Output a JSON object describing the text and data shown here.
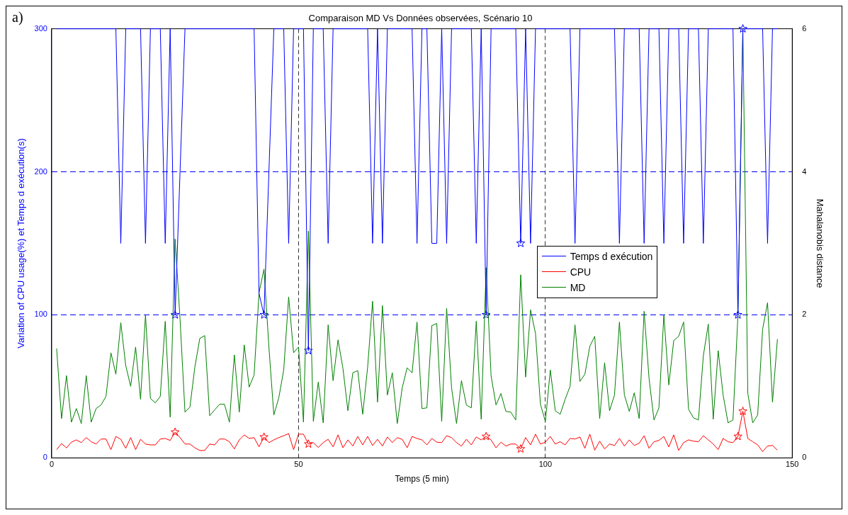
{
  "chart_data": {
    "type": "line",
    "title": "Comparaison MD Vs Données observées, Scénario 10",
    "xlabel": "Temps (5 min)",
    "ylabel": "Variation of CPU usage(%) et Temps d exécution(s)",
    "y2label": "Mahalanobis distance",
    "annotations": [
      "a)"
    ],
    "xlim": [
      0,
      150
    ],
    "xticks": [
      0,
      50,
      100,
      150
    ],
    "ylim": [
      0,
      300
    ],
    "yticks": [
      0,
      100,
      200,
      300
    ],
    "y2lim": [
      0,
      6
    ],
    "y2ticks": [
      0,
      2,
      4,
      6
    ],
    "grid": true,
    "legend": "right",
    "line_style": "solid",
    "x": [
      1,
      2,
      3,
      4,
      5,
      6,
      7,
      8,
      9,
      10,
      11,
      12,
      13,
      14,
      15,
      16,
      17,
      18,
      19,
      20,
      21,
      22,
      23,
      24,
      25,
      26,
      27,
      28,
      29,
      30,
      31,
      32,
      33,
      34,
      35,
      36,
      37,
      38,
      39,
      40,
      41,
      42,
      43,
      44,
      45,
      46,
      47,
      48,
      49,
      50,
      51,
      52,
      53,
      54,
      55,
      56,
      57,
      58,
      59,
      60,
      61,
      62,
      63,
      64,
      65,
      66,
      67,
      68,
      69,
      70,
      71,
      72,
      73,
      74,
      75,
      76,
      77,
      78,
      79,
      80,
      81,
      82,
      83,
      84,
      85,
      86,
      87,
      88,
      89,
      90,
      91,
      92,
      93,
      94,
      95,
      96,
      97,
      98,
      99,
      100,
      101,
      102,
      103,
      104,
      105,
      106,
      107,
      108,
      109,
      110,
      111,
      112,
      113,
      114,
      115,
      116,
      117,
      118,
      119,
      120,
      121,
      122,
      123,
      124,
      125,
      126,
      127,
      128,
      129,
      130,
      131,
      132,
      133,
      134,
      135,
      136,
      137,
      138,
      139,
      140,
      141,
      142,
      143,
      144,
      145,
      146,
      147
    ],
    "series": [
      {
        "name": "Temps d exécution",
        "color": "#0000ff",
        "x": [
          1,
          13,
          14,
          15,
          18,
          19,
          20,
          22,
          23,
          24,
          25,
          27,
          41,
          42,
          43,
          45,
          47,
          48,
          49,
          51,
          52,
          53,
          55,
          56,
          57,
          64,
          65,
          66,
          67,
          68,
          73,
          74,
          75,
          76,
          77,
          78,
          79,
          80,
          81,
          85,
          86,
          87,
          88,
          89,
          94,
          95,
          96,
          97,
          98,
          105,
          106,
          107,
          114,
          115,
          116,
          119,
          120,
          121,
          123,
          124,
          125,
          127,
          128,
          129,
          131,
          132,
          133,
          138,
          139,
          140,
          144,
          145,
          146,
          147
        ],
        "values": [
          300,
          300,
          150,
          300,
          300,
          150,
          300,
          300,
          150,
          300,
          100,
          300,
          300,
          115,
          100,
          300,
          300,
          150,
          300,
          300,
          75,
          300,
          300,
          150,
          300,
          300,
          150,
          300,
          150,
          300,
          300,
          150,
          300,
          300,
          150,
          150,
          300,
          150,
          300,
          300,
          150,
          300,
          100,
          300,
          300,
          150,
          300,
          150,
          300,
          300,
          150,
          300,
          300,
          150,
          300,
          300,
          150,
          300,
          300,
          150,
          300,
          300,
          150,
          300,
          300,
          150,
          300,
          300,
          100,
          300,
          300,
          150,
          300,
          300
        ]
      },
      {
        "name": "CPU",
        "color": "#ff0000",
        "values": [
          5.8,
          10,
          7,
          11,
          12.6,
          10.7,
          14.2,
          11.3,
          9.7,
          13.2,
          13.2,
          5.8,
          15,
          13,
          6.7,
          14.2,
          5.8,
          13,
          9.7,
          9.1,
          9.1,
          13.2,
          13.6,
          12.2,
          18,
          14.2,
          9.7,
          9.7,
          7.1,
          5.2,
          5.2,
          9.7,
          9.1,
          13.2,
          13.2,
          11.3,
          6.3,
          12.6,
          16.1,
          13.6,
          14.2,
          7.7,
          14.6,
          10.7,
          12.6,
          14.2,
          15.5,
          17,
          5.8,
          16.6,
          16.6,
          9.7,
          10.7,
          7.3,
          10.7,
          13,
          7.7,
          16.1,
          7.1,
          12.6,
          8.3,
          15,
          9.1,
          15,
          8.7,
          13,
          8.3,
          14.6,
          10.7,
          14.2,
          13,
          7.1,
          15,
          13.6,
          12.6,
          9.1,
          13.6,
          11,
          10.7,
          15.5,
          14.2,
          10.7,
          8.3,
          13,
          9.1,
          14.6,
          12.6,
          15,
          12.6,
          7.1,
          11,
          8.3,
          9.7,
          9.7,
          6.3,
          14.2,
          9.1,
          16.6,
          9.7,
          11,
          15,
          9.7,
          11.3,
          9.1,
          13.6,
          13.2,
          14.6,
          6.7,
          16.6,
          5.4,
          11.7,
          6.3,
          9.7,
          8.7,
          13.6,
          8.3,
          12.6,
          8.7,
          10.3,
          15.5,
          6.7,
          11.3,
          12.2,
          15,
          7.7,
          16.1,
          5.2,
          10.7,
          12.6,
          11.7,
          11.3,
          15.5,
          12.6,
          9.7,
          5.8,
          13.6,
          11.3,
          10.7,
          15,
          32.6,
          13.6,
          11.3,
          9.1,
          4.4,
          8.3,
          8.7,
          5.4
        ]
      },
      {
        "name": "MD",
        "color": "#008000",
        "axis": "y2",
        "values": [
          1.53,
          0.55,
          1.15,
          0.5,
          0.69,
          0.48,
          1.15,
          0.5,
          0.69,
          0.74,
          0.86,
          1.47,
          1.17,
          1.89,
          1.29,
          1.0,
          1.55,
          0.82,
          2.0,
          0.83,
          0.77,
          0.86,
          1.91,
          0.57,
          3.06,
          1.94,
          0.64,
          0.71,
          1.27,
          1.67,
          1.71,
          0.59,
          0.67,
          0.75,
          0.75,
          0.5,
          1.44,
          0.64,
          1.58,
          0.99,
          1.16,
          2.31,
          2.64,
          1.55,
          0.6,
          0.84,
          1.23,
          2.25,
          1.47,
          1.55,
          0.5,
          3.17,
          0.51,
          1.06,
          0.49,
          1.86,
          1.08,
          1.65,
          1.25,
          0.66,
          1.19,
          1.22,
          0.61,
          1.27,
          2.19,
          0.78,
          2.13,
          0.88,
          1.19,
          0.48,
          0.98,
          1.26,
          1.19,
          1.9,
          0.69,
          0.7,
          1.85,
          1.88,
          0.51,
          2.09,
          0.98,
          0.48,
          1.08,
          0.74,
          0.7,
          1.91,
          0.54,
          2.66,
          1.15,
          0.74,
          0.9,
          0.65,
          0.64,
          0.53,
          2.56,
          1.13,
          2.07,
          1.74,
          0.75,
          0.51,
          1.23,
          0.66,
          0.61,
          0.82,
          1.0,
          1.86,
          1.07,
          1.17,
          1.56,
          1.7,
          0.55,
          1.33,
          0.66,
          0.88,
          1.9,
          0.88,
          0.65,
          0.91,
          0.55,
          2.05,
          1.11,
          0.53,
          0.7,
          2.0,
          1.02,
          1.64,
          1.7,
          1.9,
          0.68,
          0.56,
          0.53,
          1.43,
          1.87,
          0.54,
          1.5,
          0.88,
          0.49,
          0.53,
          2.0,
          6.0,
          0.9,
          0.49,
          0.6,
          1.8,
          2.17,
          0.78,
          1.66
        ]
      },
      {
        "type": "scatter",
        "marker": "star",
        "color": "#0000ff",
        "x": [
          25,
          43,
          52,
          88,
          95,
          139,
          140
        ],
        "values": [
          100,
          100,
          75,
          100,
          150,
          100,
          300
        ]
      },
      {
        "type": "scatter",
        "marker": "star",
        "color": "#ff0000",
        "x": [
          25,
          43,
          52,
          88,
          95,
          139,
          140
        ],
        "values": [
          18,
          14.6,
          9.7,
          15,
          6.3,
          15,
          32.6
        ]
      }
    ]
  }
}
